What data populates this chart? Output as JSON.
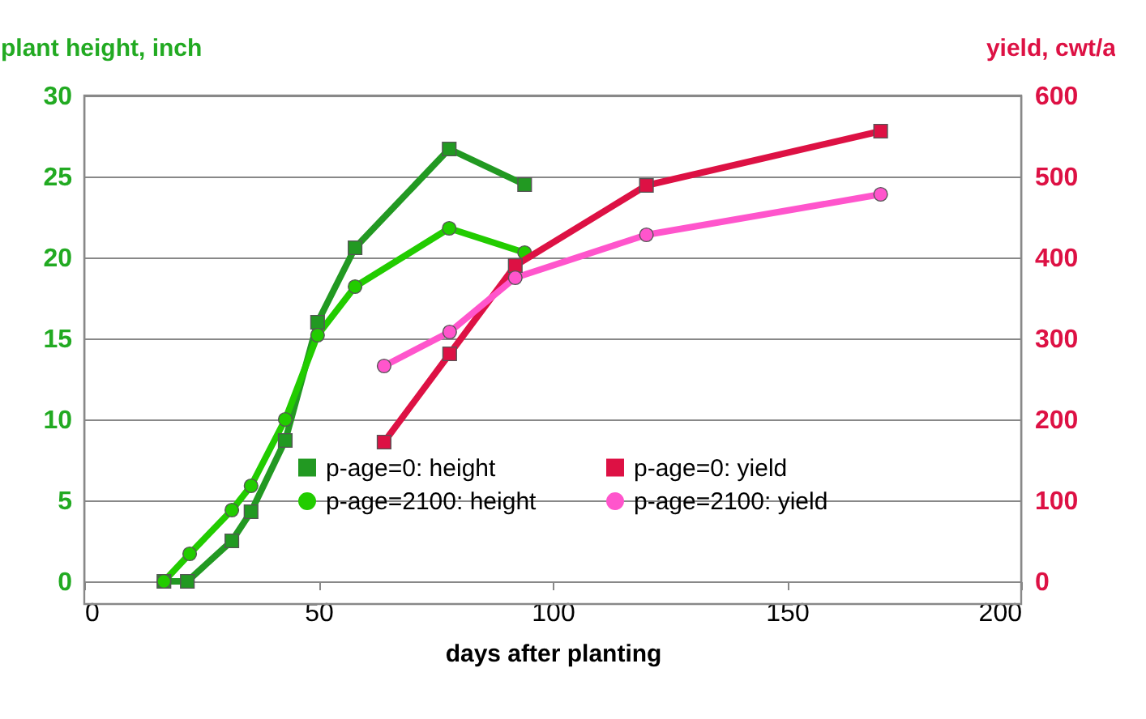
{
  "chart_data": {
    "type": "line",
    "xlabel": "days after planting",
    "ylabel": "plant height, inch",
    "y2label": "yield, cwt/a",
    "xlim": [
      0,
      200
    ],
    "xticks": [
      0,
      50,
      100,
      150,
      200
    ],
    "ylim": [
      0,
      30
    ],
    "yticks": [
      0,
      5,
      10,
      15,
      20,
      25,
      30
    ],
    "y2lim": [
      0,
      600
    ],
    "y2ticks": [
      0,
      100,
      200,
      300,
      400,
      500,
      600
    ],
    "grid": "y",
    "legend": "bottom",
    "line_style": "solid",
    "series": [
      {
        "name": "p-age=0: height",
        "color": "#229922",
        "marker": "square",
        "x": [
          17,
          22,
          31.5,
          35.6,
          42.9,
          49.8,
          57.8,
          77.9,
          94
        ],
        "values": [
          0,
          0,
          2.5,
          4.3,
          8.7,
          16,
          20.6,
          26.7,
          24.5
        ]
      },
      {
        "name": "p-age=2100: height",
        "color": "#22cc00",
        "marker": "circle",
        "x": [
          17,
          22.5,
          31.5,
          35.6,
          42.9,
          49.8,
          57.8,
          77.9,
          94
        ],
        "values": [
          0,
          1.7,
          4.4,
          5.9,
          10,
          15.2,
          18.2,
          21.8,
          20.3
        ]
      },
      {
        "name": "p-age=0: yield",
        "color": "#dd1144",
        "marker": "square",
        "axis": "y2",
        "x": [
          64,
          78,
          92,
          120,
          170
        ],
        "values": [
          172,
          281,
          390,
          489,
          556
        ]
      },
      {
        "name": "p-age=2100: yield",
        "color": "#ff55cc",
        "marker": "circle",
        "axis": "y2",
        "x": [
          64,
          78,
          92,
          120,
          170
        ],
        "values": [
          266,
          308,
          375,
          428,
          478
        ]
      }
    ]
  }
}
